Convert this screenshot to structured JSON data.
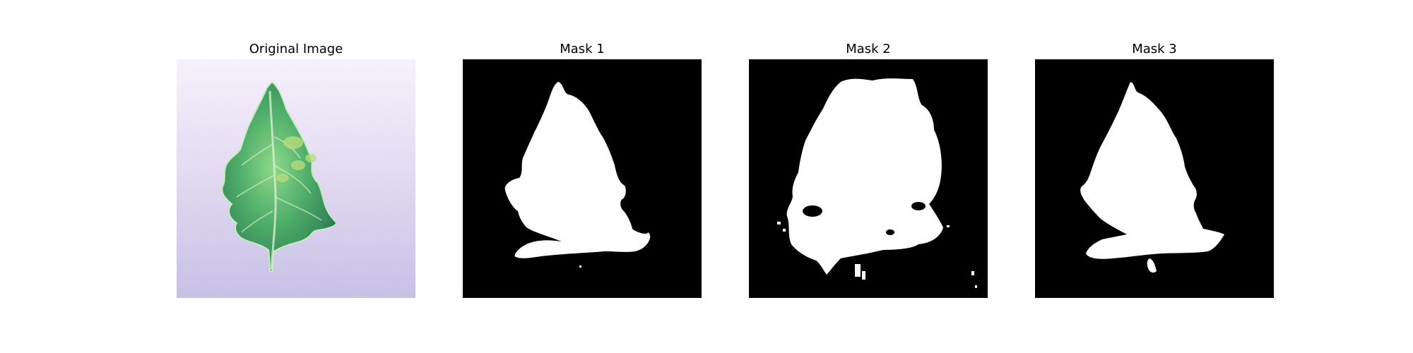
{
  "figure": {
    "panels": [
      {
        "title": "Original Image"
      },
      {
        "title": "Mask 1"
      },
      {
        "title": "Mask 2"
      },
      {
        "title": "Mask 3"
      }
    ]
  },
  "colors": {
    "background_canvas": "#ffffff",
    "mask_background": "#000000",
    "mask_foreground": "#ffffff",
    "leaf_dark": "#2e7d4f",
    "leaf_light": "#7ccf7e",
    "surface": "#d8d2ee"
  }
}
